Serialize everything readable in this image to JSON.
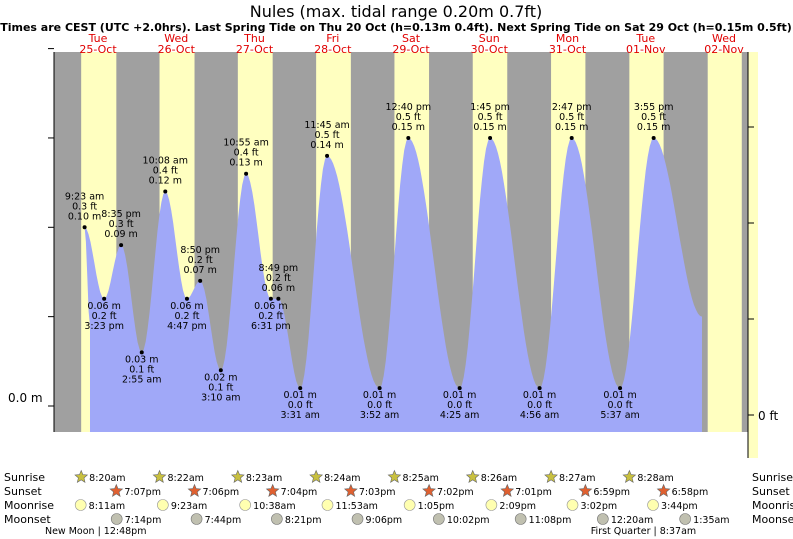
{
  "title": "Nules (max. tidal range 0.20m 0.7ft)",
  "subtitle": "Times are CEST (UTC +2.0hrs). Last Spring Tide on Thu 20 Oct (h=0.13m 0.4ft). Next Spring Tide on Sat 29 Oct (h=0.15m 0.5ft)",
  "colors": {
    "night": "#a0a0a0",
    "day": "#ffffc0",
    "water": "#a0a8f8",
    "day_label": "#e00000",
    "sunrise_star": "#c8c040",
    "sunset_star": "#e06030",
    "moonrise": "#ffffb0",
    "moonset": "#c0c0b0"
  },
  "chart_data": {
    "type": "area",
    "y_left_label": "0.0 m",
    "y_right_label": "0 ft",
    "days": [
      {
        "dow": "Tue",
        "date": "25-Oct"
      },
      {
        "dow": "Wed",
        "date": "26-Oct"
      },
      {
        "dow": "Thu",
        "date": "27-Oct"
      },
      {
        "dow": "Fri",
        "date": "28-Oct"
      },
      {
        "dow": "Sat",
        "date": "29-Oct"
      },
      {
        "dow": "Sun",
        "date": "30-Oct"
      },
      {
        "dow": "Mon",
        "date": "31-Oct"
      },
      {
        "dow": "Tue",
        "date": "01-Nov"
      },
      {
        "dow": "Wed",
        "date": "02-Nov"
      }
    ],
    "tides": [
      {
        "day": 0,
        "hour": 9.383,
        "m": 0.1,
        "time": "9:23 am",
        "ft": "0.3 ft",
        "hm": "0.10 m",
        "type": "high"
      },
      {
        "day": 0,
        "hour": 15.383,
        "m": 0.06,
        "time": "3:23 pm",
        "ft": "0.2 ft",
        "hm": "0.06 m",
        "type": "low"
      },
      {
        "day": 0,
        "hour": 20.583,
        "m": 0.09,
        "time": "8:35 pm",
        "ft": "0.3 ft",
        "hm": "0.09 m",
        "type": "high"
      },
      {
        "day": 1,
        "hour": 2.917,
        "m": 0.03,
        "time": "2:55 am",
        "ft": "0.1 ft",
        "hm": "0.03 m",
        "type": "low"
      },
      {
        "day": 1,
        "hour": 10.133,
        "m": 0.12,
        "time": "10:08 am",
        "ft": "0.4 ft",
        "hm": "0.12 m",
        "type": "high"
      },
      {
        "day": 1,
        "hour": 16.783,
        "m": 0.06,
        "time": "4:47 pm",
        "ft": "0.2 ft",
        "hm": "0.06 m",
        "type": "low"
      },
      {
        "day": 1,
        "hour": 20.833,
        "m": 0.07,
        "time": "8:50 pm",
        "ft": "0.2 ft",
        "hm": "0.07 m",
        "type": "high"
      },
      {
        "day": 2,
        "hour": 3.167,
        "m": 0.02,
        "time": "3:10 am",
        "ft": "0.1 ft",
        "hm": "0.02 m",
        "type": "low"
      },
      {
        "day": 2,
        "hour": 10.917,
        "m": 0.13,
        "time": "10:55 am",
        "ft": "0.4 ft",
        "hm": "0.13 m",
        "type": "high"
      },
      {
        "day": 2,
        "hour": 18.517,
        "m": 0.06,
        "time": "6:31 pm",
        "ft": "0.2 ft",
        "hm": "0.06 m",
        "type": "low"
      },
      {
        "day": 2,
        "hour": 20.817,
        "m": 0.06,
        "time": "8:49 pm",
        "ft": "0.2 ft",
        "hm": "0.06 m",
        "type": "high"
      },
      {
        "day": 3,
        "hour": 3.517,
        "m": 0.01,
        "time": "3:31 am",
        "ft": "0.0 ft",
        "hm": "0.01 m",
        "type": "low"
      },
      {
        "day": 3,
        "hour": 11.75,
        "m": 0.14,
        "time": "11:45 am",
        "ft": "0.5 ft",
        "hm": "0.14 m",
        "type": "high"
      },
      {
        "day": 4,
        "hour": 3.867,
        "m": 0.01,
        "time": "3:52 am",
        "ft": "0.0 ft",
        "hm": "0.01 m",
        "type": "low"
      },
      {
        "day": 4,
        "hour": 12.667,
        "m": 0.15,
        "time": "12:40 pm",
        "ft": "0.5 ft",
        "hm": "0.15 m",
        "type": "high"
      },
      {
        "day": 5,
        "hour": 4.417,
        "m": 0.01,
        "time": "4:25 am",
        "ft": "0.0 ft",
        "hm": "0.01 m",
        "type": "low"
      },
      {
        "day": 5,
        "hour": 13.75,
        "m": 0.15,
        "time": "1:45 pm",
        "ft": "0.5 ft",
        "hm": "0.15 m",
        "type": "high"
      },
      {
        "day": 6,
        "hour": 4.933,
        "m": 0.01,
        "time": "4:56 am",
        "ft": "0.0 ft",
        "hm": "0.01 m",
        "type": "low"
      },
      {
        "day": 6,
        "hour": 14.783,
        "m": 0.15,
        "time": "2:47 pm",
        "ft": "0.5 ft",
        "hm": "0.15 m",
        "type": "high"
      },
      {
        "day": 7,
        "hour": 5.617,
        "m": 0.01,
        "time": "5:37 am",
        "ft": "0.0 ft",
        "hm": "0.01 m",
        "type": "low"
      },
      {
        "day": 7,
        "hour": 15.917,
        "m": 0.15,
        "time": "3:55 pm",
        "ft": "0.5 ft",
        "hm": "0.15 m",
        "type": "high"
      }
    ],
    "rows": [
      "Sunrise",
      "Sunset",
      "Moonrise",
      "Moonset"
    ],
    "sunrise": [
      {
        "day": 0,
        "time": "8:20am"
      },
      {
        "day": 1,
        "time": "8:22am"
      },
      {
        "day": 2,
        "time": "8:23am"
      },
      {
        "day": 3,
        "time": "8:24am"
      },
      {
        "day": 4,
        "time": "8:25am"
      },
      {
        "day": 5,
        "time": "8:26am"
      },
      {
        "day": 6,
        "time": "8:27am"
      },
      {
        "day": 7,
        "time": "8:28am"
      }
    ],
    "sunset": [
      {
        "day": 0,
        "time": "7:07pm"
      },
      {
        "day": 1,
        "time": "7:06pm"
      },
      {
        "day": 2,
        "time": "7:04pm"
      },
      {
        "day": 3,
        "time": "7:03pm"
      },
      {
        "day": 4,
        "time": "7:02pm"
      },
      {
        "day": 5,
        "time": "7:01pm"
      },
      {
        "day": 6,
        "time": "6:59pm"
      },
      {
        "day": 7,
        "time": "6:58pm"
      }
    ],
    "moonrise": [
      {
        "day": 0,
        "time": "8:11am"
      },
      {
        "day": 1,
        "time": "9:23am"
      },
      {
        "day": 2,
        "time": "10:38am"
      },
      {
        "day": 3,
        "time": "11:53am"
      },
      {
        "day": 4,
        "time": "1:05pm"
      },
      {
        "day": 5,
        "time": "2:09pm"
      },
      {
        "day": 6,
        "time": "3:02pm"
      },
      {
        "day": 7,
        "time": "3:44pm"
      }
    ],
    "moonset": [
      {
        "day": 0,
        "time": "7:14pm"
      },
      {
        "day": 1,
        "time": "7:44pm"
      },
      {
        "day": 2,
        "time": "8:21pm"
      },
      {
        "day": 3,
        "time": "9:06pm"
      },
      {
        "day": 4,
        "time": "10:02pm"
      },
      {
        "day": 5,
        "time": "11:08pm"
      },
      {
        "day": 7,
        "time": "12:20am"
      },
      {
        "day": 8,
        "time": "1:35am"
      }
    ],
    "moon_phases": [
      {
        "day": 0,
        "text": "New Moon | 12:48pm"
      },
      {
        "day": 7,
        "text": "First Quarter | 8:37am"
      }
    ]
  }
}
